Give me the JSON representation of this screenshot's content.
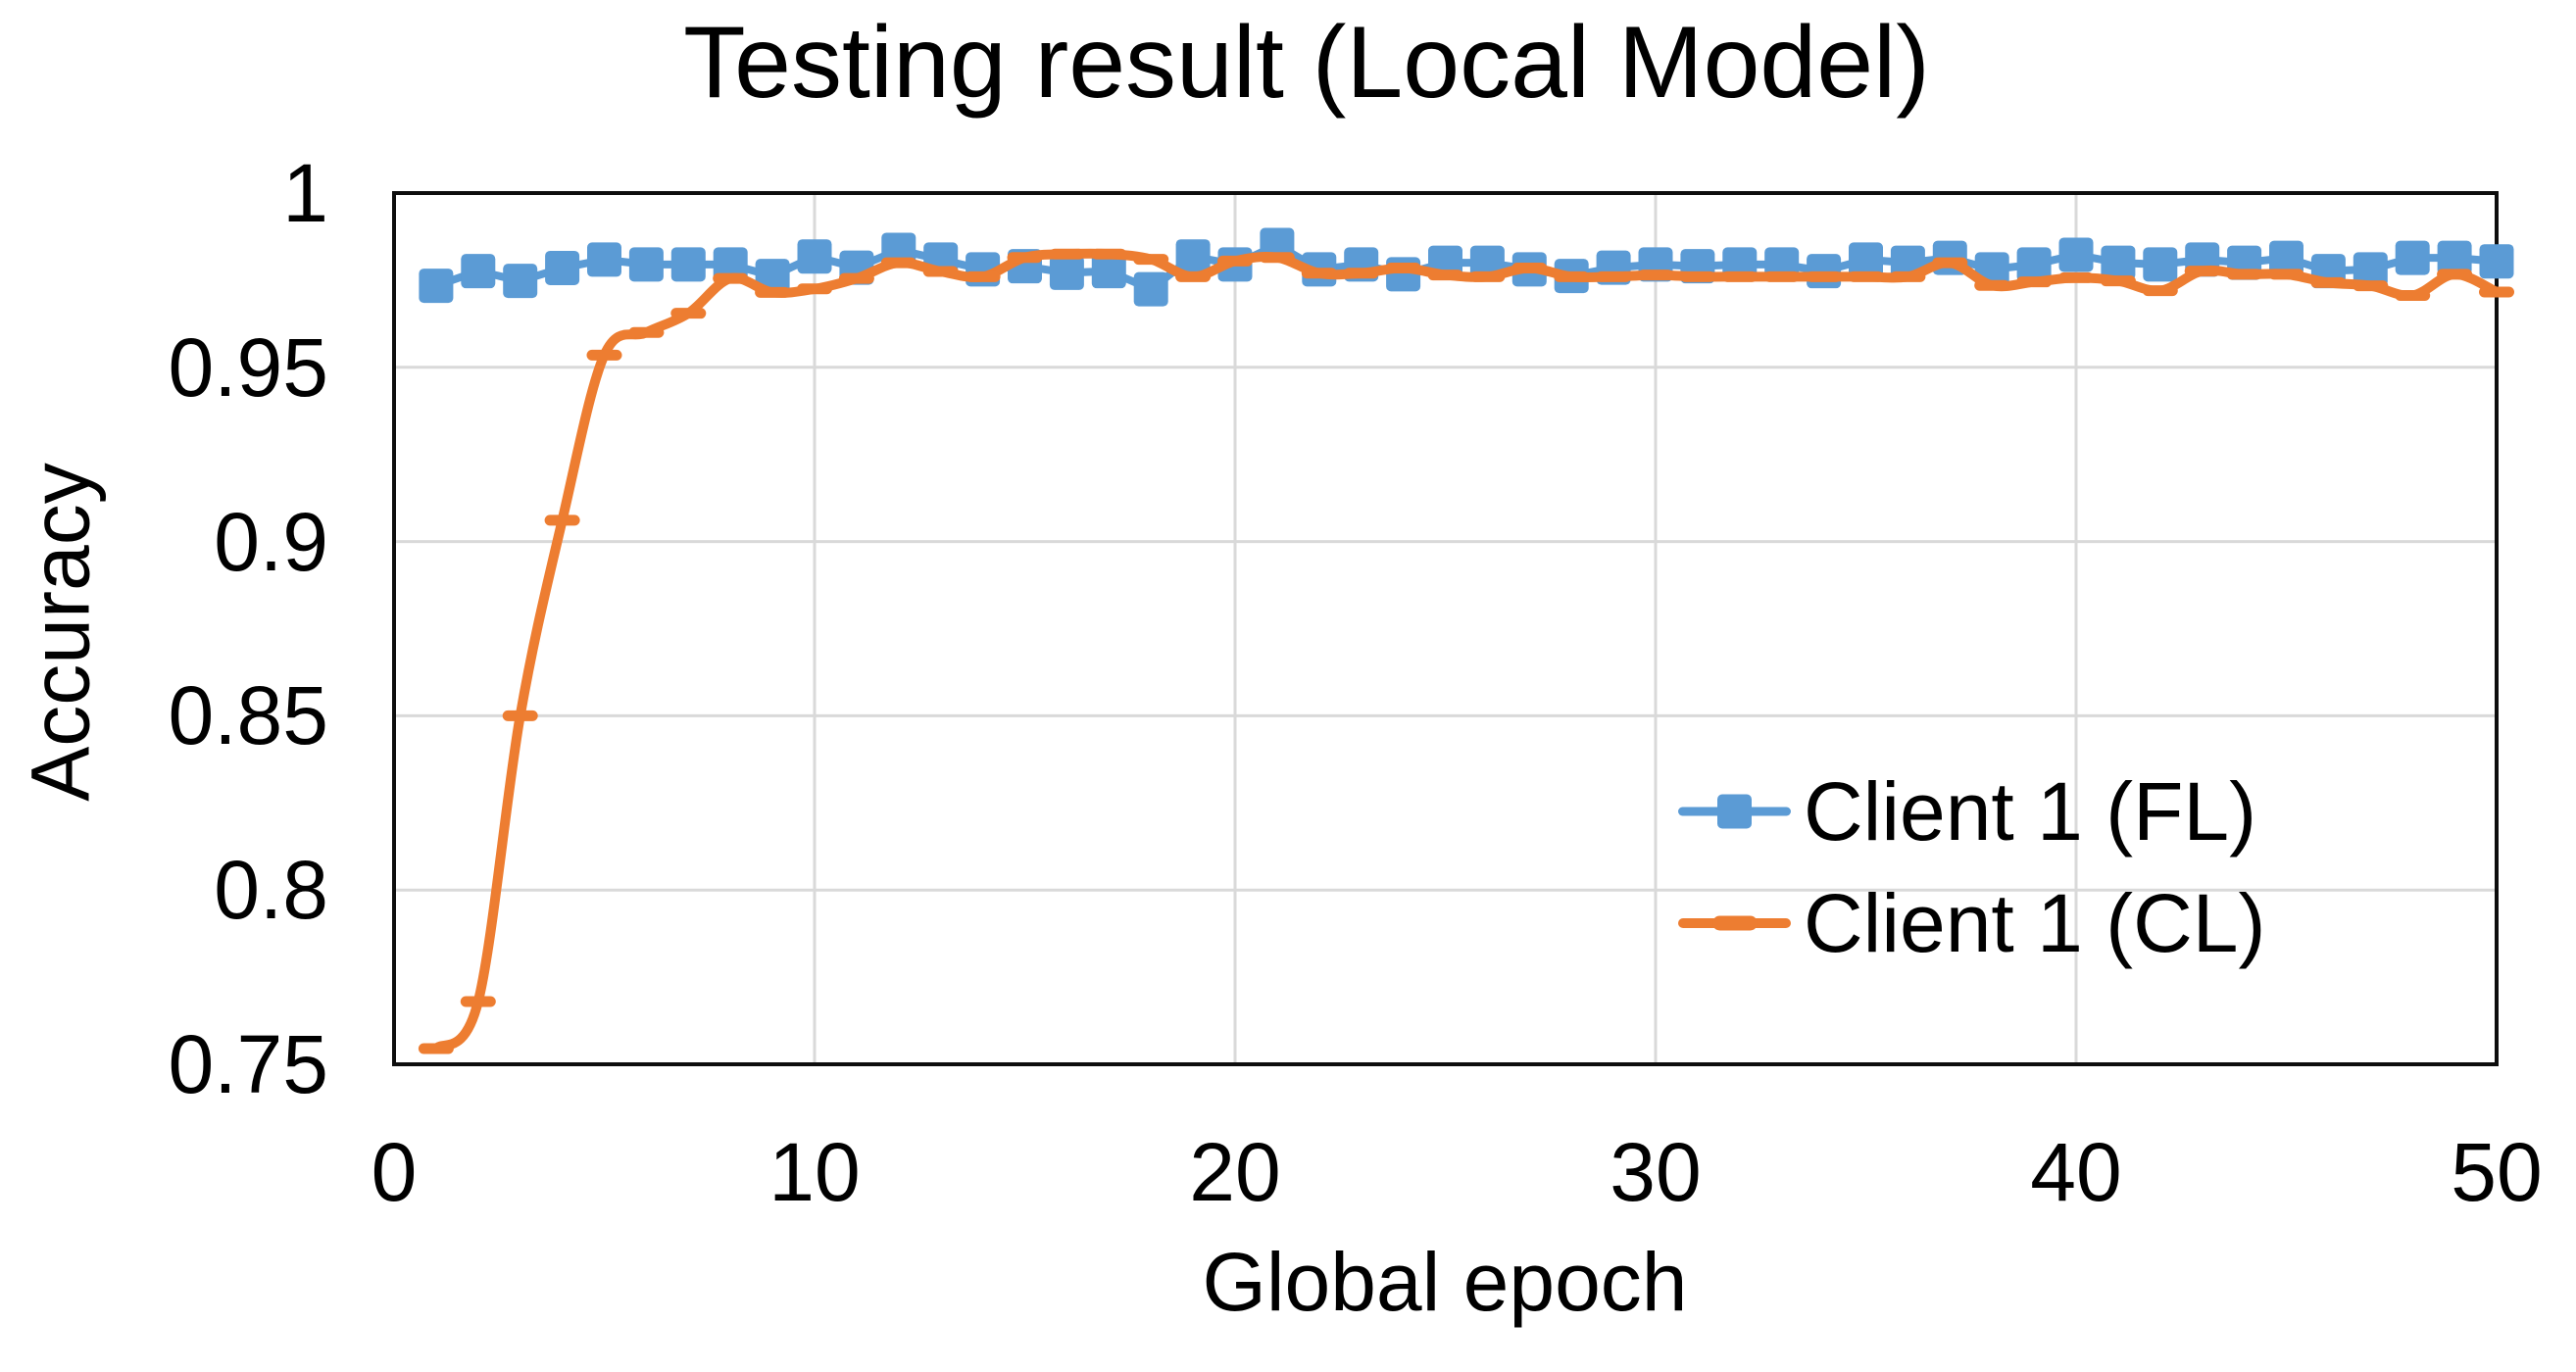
{
  "title": "Testing result (Local Model)",
  "x_axis": {
    "title": "Global epoch",
    "ticks": [
      "0",
      "10",
      "20",
      "30",
      "40",
      "50"
    ],
    "min": 0,
    "max": 50
  },
  "y_axis": {
    "title": "Accuracy",
    "ticks": [
      "1",
      "0.95",
      "0.9",
      "0.85",
      "0.8",
      "0.75"
    ],
    "min": 0.75,
    "max": 1.0
  },
  "legend": {
    "position": "inside-right",
    "items": [
      {
        "label": "Client 1 (FL)",
        "color": "#5B9BD5",
        "marker": "square"
      },
      {
        "label": "Client 1 (CL)",
        "color": "#ED7D31",
        "marker": "dash"
      }
    ]
  },
  "colors": {
    "fl_blue": "#5B9BD5",
    "cl_orange": "#ED7D31",
    "gridline": "#D9D9D9",
    "plot_border": "#0d0d0d"
  },
  "chart_data": {
    "type": "line",
    "title": "Testing result (Local Model)",
    "xlabel": "Global epoch",
    "ylabel": "Accuracy",
    "xlim": [
      0,
      50
    ],
    "ylim": [
      0.75,
      1.0
    ],
    "grid": {
      "x": [
        10,
        20,
        30,
        40
      ],
      "y": [
        0.95,
        0.9,
        0.85,
        0.8
      ]
    },
    "legend_position": "inside right, mid-height",
    "x": [
      1,
      2,
      3,
      4,
      5,
      6,
      7,
      8,
      9,
      10,
      11,
      12,
      13,
      14,
      15,
      16,
      17,
      18,
      19,
      20,
      21,
      22,
      23,
      24,
      25,
      26,
      27,
      28,
      29,
      30,
      31,
      32,
      33,
      34,
      35,
      36,
      37,
      38,
      39,
      40,
      41,
      42,
      43,
      44,
      45,
      46,
      47,
      48,
      49,
      50
    ],
    "series": [
      {
        "name": "Client 1 (FL)",
        "color": "#5B9BD5",
        "marker": "square",
        "smooth": false,
        "values": [
          0.9734,
          0.9776,
          0.9748,
          0.9785,
          0.9809,
          0.9795,
          0.9795,
          0.9795,
          0.9762,
          0.9818,
          0.9786,
          0.9837,
          0.9809,
          0.9781,
          0.979,
          0.9771,
          0.9776,
          0.9724,
          0.9818,
          0.9795,
          0.9851,
          0.9781,
          0.9795,
          0.9767,
          0.98,
          0.98,
          0.9781,
          0.9762,
          0.9786,
          0.9795,
          0.979,
          0.9795,
          0.9795,
          0.9776,
          0.9809,
          0.98,
          0.9814,
          0.9781,
          0.9795,
          0.9823,
          0.98,
          0.9795,
          0.9809,
          0.98,
          0.9814,
          0.9776,
          0.9781,
          0.9814,
          0.9814,
          0.9804
        ]
      },
      {
        "name": "Client 1 (CL)",
        "color": "#ED7D31",
        "marker": "dash",
        "smooth": true,
        "values": [
          0.7545,
          0.768,
          0.85,
          0.9061,
          0.9535,
          0.96,
          0.9655,
          0.9755,
          0.9715,
          0.9725,
          0.9755,
          0.98,
          0.9775,
          0.976,
          0.9815,
          0.9825,
          0.9825,
          0.981,
          0.976,
          0.9805,
          0.9815,
          0.977,
          0.977,
          0.9785,
          0.9765,
          0.976,
          0.9785,
          0.976,
          0.976,
          0.9765,
          0.976,
          0.976,
          0.976,
          0.976,
          0.976,
          0.976,
          0.98,
          0.9735,
          0.9745,
          0.9757,
          0.9748,
          0.972,
          0.9776,
          0.9767,
          0.9767,
          0.9743,
          0.9734,
          0.9706,
          0.9767,
          0.9716
        ]
      }
    ]
  }
}
